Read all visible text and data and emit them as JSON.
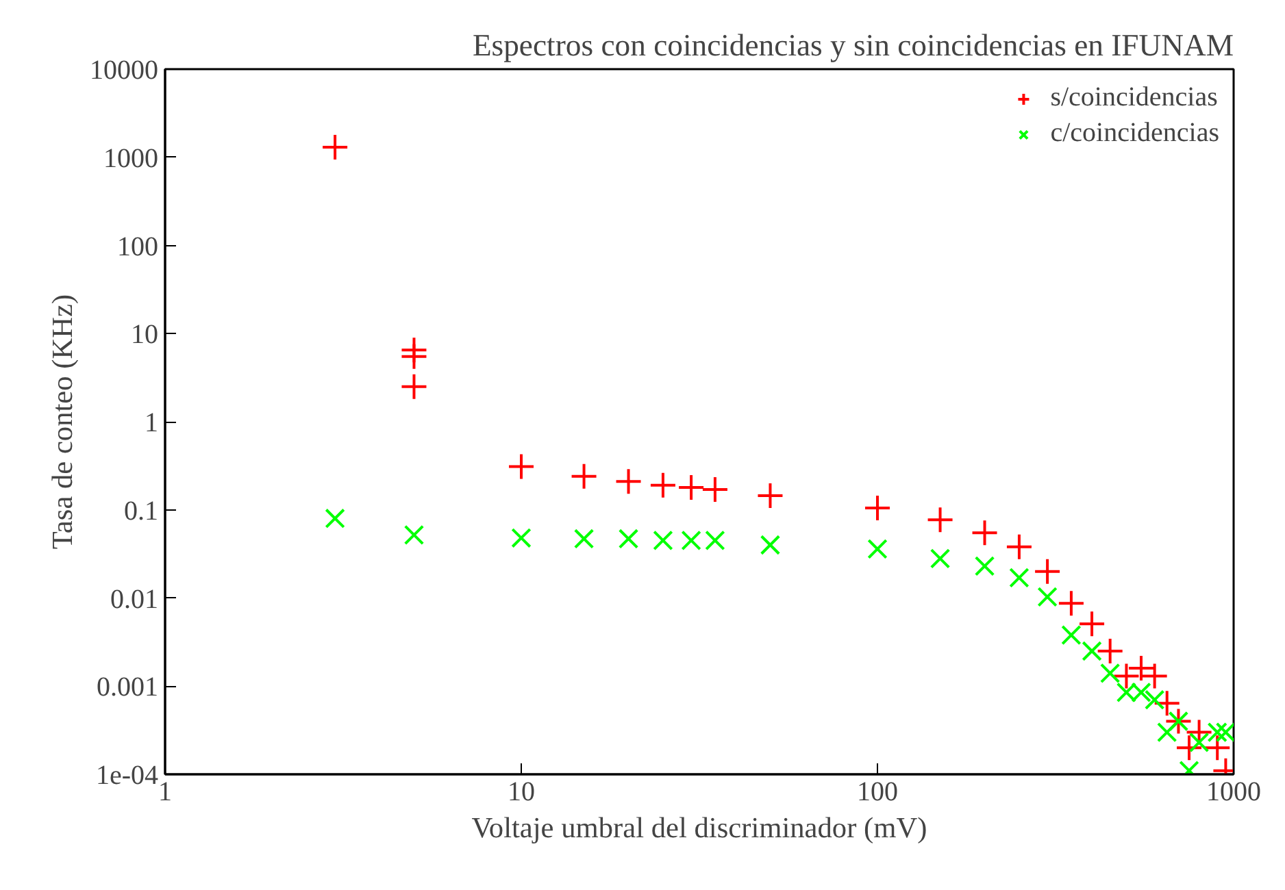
{
  "chart_data": {
    "type": "scatter",
    "title": "Espectros con coincidencias y sin coincidencias en IFUNAM",
    "xlabel": "Voltaje umbral del discriminador (mV)",
    "ylabel": "Tasa de conteo (KHz)",
    "log": "xy",
    "grid": false,
    "legend": "top right",
    "xlim": [
      1,
      1000
    ],
    "xticks": [
      1,
      10,
      100,
      1000
    ],
    "ylim": [
      0.0001,
      10000
    ],
    "yticks": [
      10000,
      1000,
      100,
      10,
      1,
      0.1,
      0.01,
      0.001,
      {
        "value": 0.0001,
        "label": "1e-04"
      }
    ],
    "series": [
      {
        "name": "s/coincidencias",
        "color": "#ff0000",
        "marker": "cross",
        "x": [
          3,
          5,
          5,
          5,
          10,
          15,
          20,
          25,
          30,
          35,
          50,
          100,
          150,
          200,
          250,
          300,
          350,
          400,
          450,
          500,
          550,
          600,
          650,
          700,
          750,
          800,
          900,
          950
        ],
        "values": [
          1300,
          6.5,
          5.5,
          2.5,
          0.31,
          0.24,
          0.21,
          0.19,
          0.18,
          0.17,
          0.145,
          0.105,
          0.077,
          0.055,
          0.038,
          0.02,
          0.0087,
          0.0051,
          0.0025,
          0.0013,
          0.0016,
          0.0013,
          0.00064,
          0.0004,
          0.0002,
          0.0003,
          0.0002,
          0.00011
        ]
      },
      {
        "name": "c/coincidencias",
        "color": "#00ff00",
        "marker": "x",
        "x": [
          3,
          5,
          10,
          15,
          20,
          25,
          30,
          35,
          50,
          100,
          150,
          200,
          250,
          300,
          350,
          400,
          450,
          500,
          550,
          600,
          650,
          700,
          750,
          800,
          900,
          950
        ],
        "values": [
          0.08,
          0.052,
          0.048,
          0.047,
          0.047,
          0.045,
          0.045,
          0.045,
          0.04,
          0.036,
          0.028,
          0.023,
          0.017,
          0.0103,
          0.0038,
          0.0025,
          0.0014,
          0.00085,
          0.00085,
          0.0007,
          0.0003,
          0.0004,
          0.00011,
          0.00023,
          0.0003,
          0.0003
        ]
      }
    ]
  }
}
